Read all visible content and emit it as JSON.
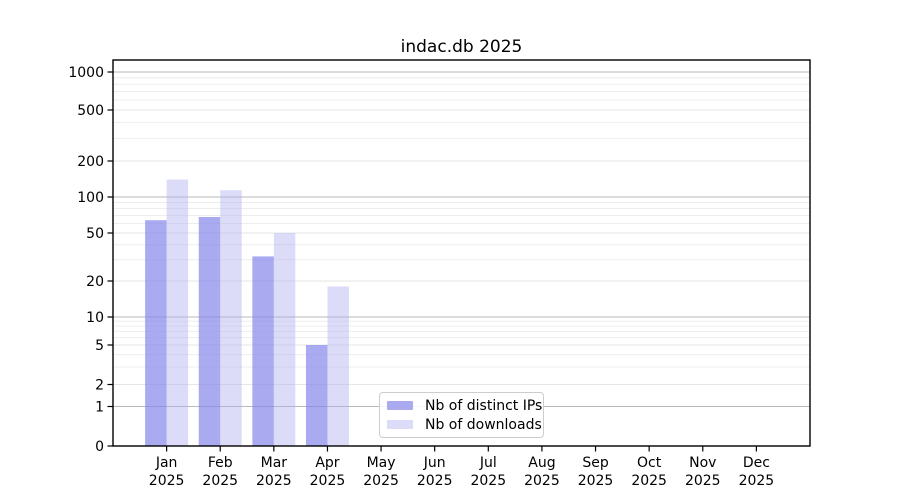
{
  "chart_data": {
    "type": "bar",
    "title": "indac.db 2025",
    "xlabel": "",
    "ylabel": "",
    "yscale": "symlog",
    "grid": true,
    "legend_position": "lower center",
    "categories": [
      "Jan",
      "Feb",
      "Mar",
      "Apr",
      "May",
      "Jun",
      "Jul",
      "Aug",
      "Sep",
      "Oct",
      "Nov",
      "Dec"
    ],
    "year_label": "2025",
    "series": [
      {
        "name": "Nb of distinct IPs",
        "color": "rgba(134,134,235,0.7)",
        "values": [
          64,
          68,
          32,
          5,
          0,
          0,
          0,
          0,
          0,
          0,
          0,
          0
        ]
      },
      {
        "name": "Nb of downloads",
        "color": "rgba(177,177,240,0.45)",
        "values": [
          140,
          114,
          50,
          18,
          0,
          0,
          0,
          0,
          0,
          0,
          0,
          0
        ]
      }
    ],
    "yticks": [
      0,
      1,
      2,
      5,
      10,
      20,
      50,
      100,
      200,
      500,
      1000
    ],
    "ylim": [
      0,
      1400
    ],
    "major_gridlines": [
      1,
      10,
      100,
      1000
    ],
    "minor_gridlines": [
      3,
      4,
      6,
      7,
      8,
      9,
      30,
      40,
      60,
      70,
      80,
      90,
      300,
      400,
      600,
      700,
      800,
      900
    ],
    "colors": {
      "major_grid": "#b9b9b9",
      "labeled_grid": "#e6e6e6",
      "minor_grid": "#ededed",
      "axis": "#000000",
      "text": "#000000"
    }
  }
}
